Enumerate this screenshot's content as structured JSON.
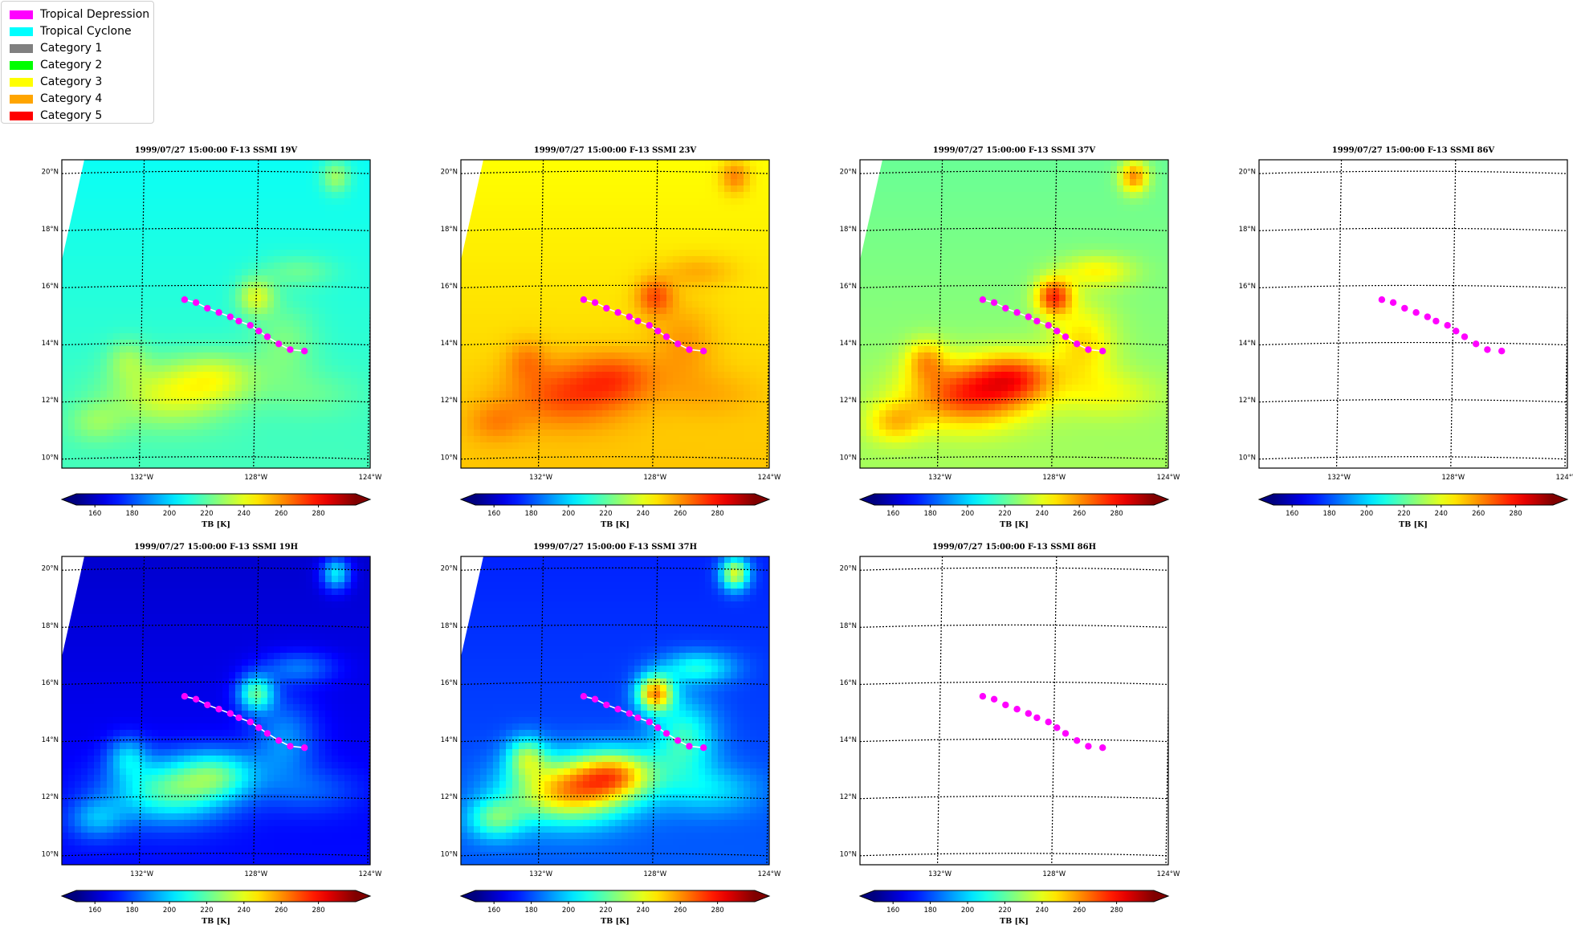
{
  "legend": {
    "items": [
      {
        "label": "Tropical Depression",
        "color": "#ff00ff"
      },
      {
        "label": "Tropical Cyclone",
        "color": "#00ffff"
      },
      {
        "label": "Category 1",
        "color": "#808080"
      },
      {
        "label": "Category 2",
        "color": "#00ff00"
      },
      {
        "label": "Category 3",
        "color": "#ffff00"
      },
      {
        "label": "Category 4",
        "color": "#ffa500"
      },
      {
        "label": "Category 5",
        "color": "#ff0000"
      }
    ]
  },
  "chart_data": {
    "type": "heatmap",
    "colormap": "jet",
    "axes": {
      "xticks": [
        {
          "lon": -132,
          "label": "132°W"
        },
        {
          "lon": -128,
          "label": "128°W"
        },
        {
          "lon": -124,
          "label": "124°W"
        }
      ],
      "yticks": [
        {
          "lat": 10,
          "label": "10°N"
        },
        {
          "lat": 12,
          "label": "12°N"
        },
        {
          "lat": 14,
          "label": "14°N"
        },
        {
          "lat": 16,
          "label": "16°N"
        },
        {
          "lat": 18,
          "label": "18°N"
        },
        {
          "lat": 20,
          "label": "20°N"
        }
      ],
      "xlim": [
        -134.8,
        -124.0
      ],
      "ylim": [
        9.6,
        20.4
      ],
      "grid": true
    },
    "colorbar": {
      "label": "TB [K]",
      "ticks": [
        160,
        180,
        200,
        220,
        240,
        260,
        280
      ],
      "range": [
        150,
        300
      ],
      "extend": "both"
    },
    "track": {
      "lon": [
        -130.5,
        -130.1,
        -129.7,
        -129.3,
        -128.9,
        -128.6,
        -128.2,
        -127.9,
        -127.6,
        -127.2,
        -126.8,
        -126.3
      ],
      "lat": [
        15.5,
        15.4,
        15.2,
        15.05,
        14.9,
        14.75,
        14.6,
        14.4,
        14.2,
        13.95,
        13.75,
        13.7
      ],
      "category": "Tropical Depression",
      "color": "#ff00ff"
    },
    "panels": [
      {
        "title": "1999/07/27 15:00:00  F-13 SSMI 19V",
        "channel": "19V",
        "has_data": true,
        "base_tb": 212,
        "blob_gain": 26,
        "line_visible": true
      },
      {
        "title": "1999/07/27 15:00:00  F-13 SSMI 23V",
        "channel": "23V",
        "has_data": true,
        "base_tb": 248,
        "blob_gain": 22,
        "line_visible": true
      },
      {
        "title": "1999/07/27 15:00:00  F-13 SSMI 37V",
        "channel": "37V",
        "has_data": true,
        "base_tb": 226,
        "blob_gain": 48,
        "line_visible": true
      },
      {
        "title": "1999/07/27 15:00:00  F-13 SSMI 86V",
        "channel": "86V",
        "has_data": false,
        "line_visible": false
      },
      {
        "title": "1999/07/27 15:00:00  F-13 SSMI 19H",
        "channel": "19H",
        "has_data": true,
        "base_tb": 166,
        "blob_gain": 52,
        "line_visible": true
      },
      {
        "title": "1999/07/27 15:00:00  F-13 SSMI 37H",
        "channel": "37H",
        "has_data": true,
        "base_tb": 178,
        "blob_gain": 80,
        "line_visible": true
      },
      {
        "title": "1999/07/27 15:00:00  F-13 SSMI 86H",
        "channel": "86H",
        "has_data": false,
        "line_visible": false
      }
    ]
  }
}
